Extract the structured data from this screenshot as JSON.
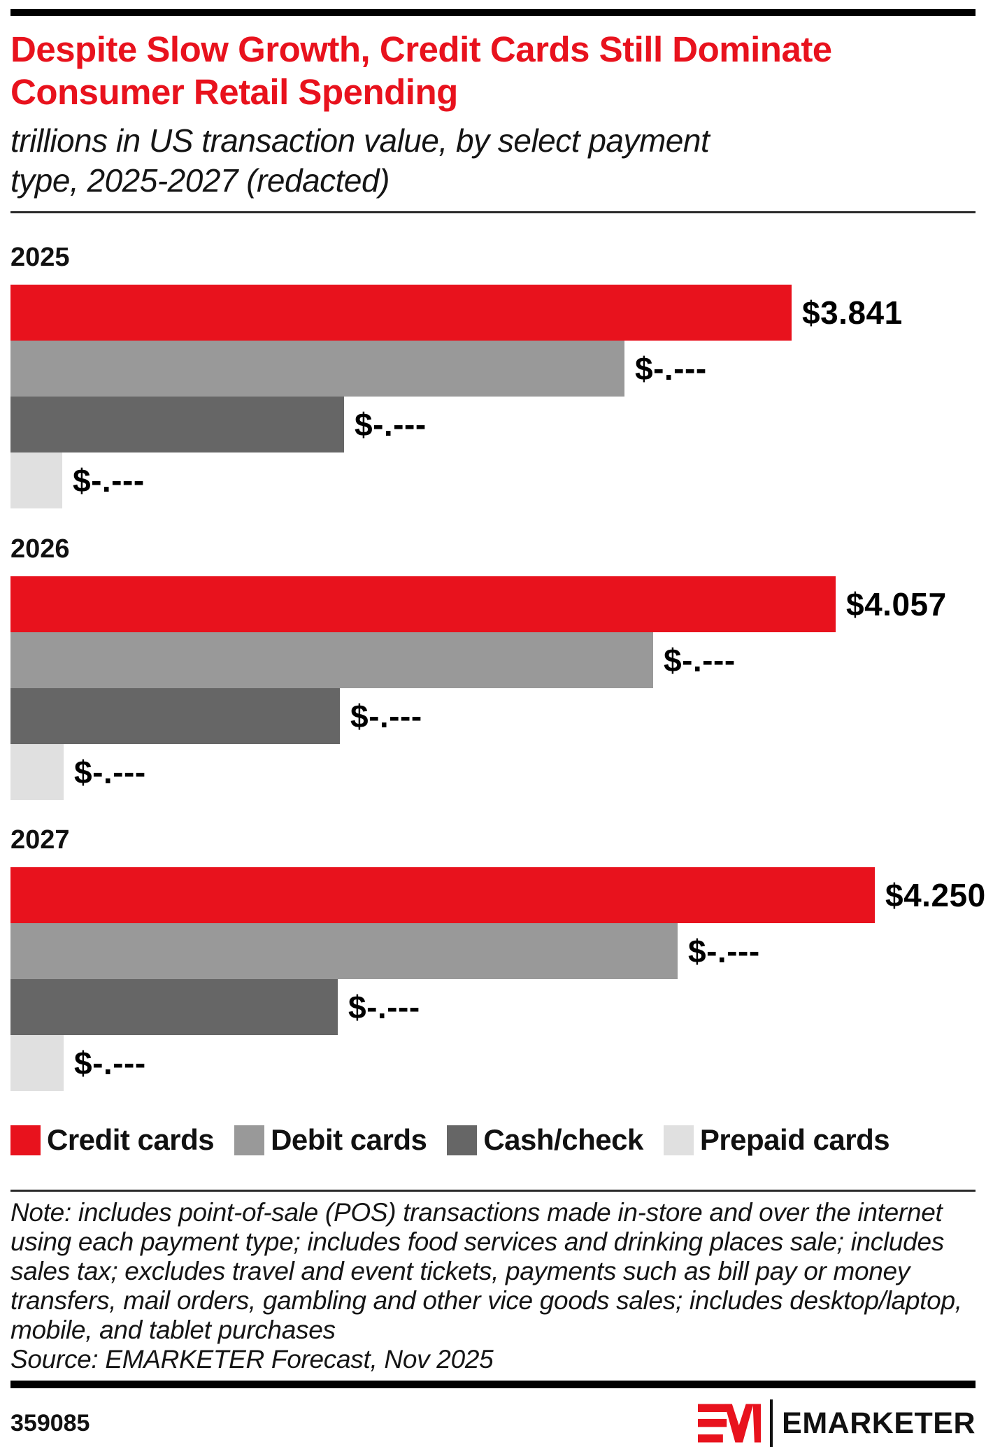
{
  "header": {
    "title_line1": "Despite Slow Growth, Credit Cards Still Dominate",
    "title_line2": "Consumer Retail Spending",
    "subtitle_line1": "trillions in US transaction value, by select payment",
    "subtitle_line2": "type, 2025-2027 (redacted)",
    "title_color": "#e8121d"
  },
  "chart_data": {
    "type": "bar",
    "orientation": "horizontal",
    "title": "Despite Slow Growth, Credit Cards Still Dominate Consumer Retail Spending",
    "subtitle": "trillions in US transaction value, by select payment type, 2025-2027 (redacted)",
    "unit": "trillions of US dollars",
    "categories": [
      "2025",
      "2026",
      "2027"
    ],
    "series": [
      {
        "name": "Credit cards",
        "color": "#e8121d",
        "values": [
          3.841,
          4.057,
          4.25
        ],
        "value_labels": [
          "$3.841",
          "$4.057",
          "$4.250"
        ],
        "redacted": false
      },
      {
        "name": "Debit cards",
        "color": "#999999",
        "values": [
          3.02,
          3.16,
          3.28
        ],
        "values_note": "estimated from bar length; printed labels are redacted",
        "value_labels": [
          "$-.---",
          "$-.---",
          "$-.---"
        ],
        "redacted": true
      },
      {
        "name": "Cash/check",
        "color": "#666666",
        "values": [
          1.64,
          1.62,
          1.61
        ],
        "values_note": "estimated from bar length; printed labels are redacted",
        "value_labels": [
          "$-.---",
          "$-.---",
          "$-.---"
        ],
        "redacted": true
      },
      {
        "name": "Prepaid cards",
        "color": "#e0e0e0",
        "values": [
          0.255,
          0.26,
          0.26
        ],
        "values_note": "estimated from bar length; printed labels are redacted",
        "value_labels": [
          "$-.---",
          "$-.---",
          "$-.---"
        ],
        "redacted": true
      }
    ],
    "axis": {
      "x_min": 0,
      "x_max_trillions": 4.8,
      "gridlines": false,
      "ticks_visible": false
    },
    "legend_position": "bottom"
  },
  "legend": {
    "items": [
      {
        "label": "Credit cards",
        "color": "#e8121d"
      },
      {
        "label": "Debit cards",
        "color": "#999999"
      },
      {
        "label": "Cash/check",
        "color": "#666666"
      },
      {
        "label": "Prepaid cards",
        "color": "#e0e0e0"
      }
    ]
  },
  "notes": {
    "note": "Note: includes point-of-sale (POS) transactions made in-store and over the internet using each payment type; includes food services and drinking places sale; includes sales tax; excludes travel and event tickets, payments such as bill pay or money transfers, mail orders, gambling and other vice goods sales; includes desktop/laptop, mobile, and tablet purchases",
    "source": "Source: EMARKETER Forecast, Nov 2025"
  },
  "footer": {
    "chart_id": "359085",
    "brand": "EMARKETER"
  }
}
